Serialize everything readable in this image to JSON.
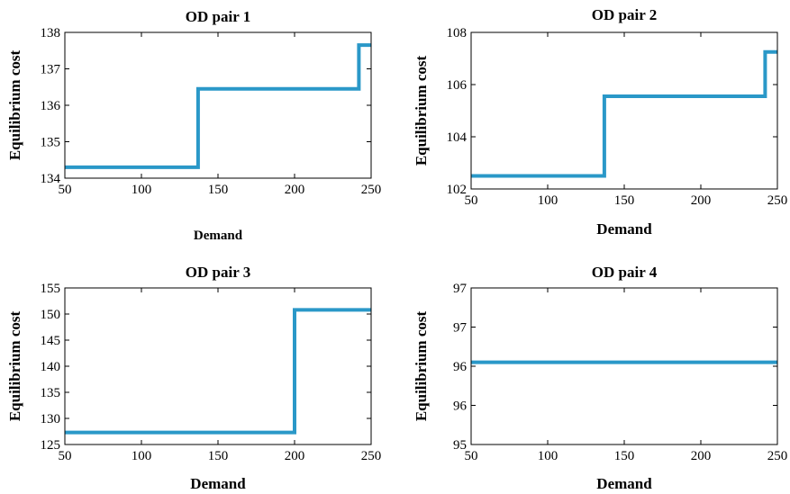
{
  "colors": {
    "line": "#2a98c8",
    "frame": "#000000"
  },
  "chart_data": [
    {
      "type": "line",
      "title": "OD pair 1",
      "xlabel": "Demand",
      "ylabel": "Equilibrium cost",
      "xlim": [
        50,
        250
      ],
      "ylim": [
        134,
        138
      ],
      "xticks": [
        50,
        100,
        150,
        200,
        250
      ],
      "yticks": [
        134,
        135,
        136,
        137,
        138
      ],
      "xtick_labels": [
        "50",
        "100",
        "150",
        "200",
        "250"
      ],
      "ytick_labels": [
        "134",
        "135",
        "136",
        "137",
        "138"
      ],
      "grid": false,
      "series": [
        {
          "x": [
            50,
            137,
            137,
            242,
            242,
            250
          ],
          "y": [
            134.3,
            134.3,
            136.45,
            136.45,
            137.65,
            137.65
          ]
        }
      ]
    },
    {
      "type": "line",
      "title": "OD pair 2",
      "xlabel": "Demand",
      "ylabel": "Equilibrium cost",
      "xlim": [
        50,
        250
      ],
      "ylim": [
        102,
        108
      ],
      "xticks": [
        50,
        100,
        150,
        200,
        250
      ],
      "yticks": [
        102,
        104,
        106,
        108
      ],
      "xtick_labels": [
        "50",
        "100",
        "150",
        "200",
        "250"
      ],
      "ytick_labels": [
        "102",
        "104",
        "106",
        "108"
      ],
      "grid": false,
      "series": [
        {
          "x": [
            50,
            137,
            137,
            242,
            242,
            250
          ],
          "y": [
            102.5,
            102.5,
            105.55,
            105.55,
            107.25,
            107.25
          ]
        }
      ]
    },
    {
      "type": "line",
      "title": "OD pair 3",
      "xlabel": "Demand",
      "ylabel": "Equilibrium cost",
      "xlim": [
        50,
        250
      ],
      "ylim": [
        125,
        155
      ],
      "xticks": [
        50,
        100,
        150,
        200,
        250
      ],
      "yticks": [
        125,
        130,
        135,
        140,
        145,
        150,
        155
      ],
      "xtick_labels": [
        "50",
        "100",
        "150",
        "200",
        "250"
      ],
      "ytick_labels": [
        "125",
        "130",
        "135",
        "140",
        "145",
        "150",
        "155"
      ],
      "grid": false,
      "series": [
        {
          "x": [
            50,
            200,
            200,
            250
          ],
          "y": [
            127.3,
            127.3,
            150.8,
            150.8
          ]
        }
      ]
    },
    {
      "type": "line",
      "title": "OD pair 4",
      "xlabel": "Demand",
      "ylabel": "Equilibrium cost",
      "xlim": [
        50,
        250
      ],
      "ylim": [
        95,
        97
      ],
      "xticks": [
        50,
        100,
        150,
        200,
        250
      ],
      "yticks": [
        95,
        95.5,
        96,
        96.5,
        97
      ],
      "xtick_labels": [
        "50",
        "100",
        "150",
        "200",
        "250"
      ],
      "ytick_labels": [
        "95",
        "96",
        "96",
        "97",
        "97"
      ],
      "grid": false,
      "series": [
        {
          "x": [
            50,
            250
          ],
          "y": [
            96.05,
            96.05
          ]
        }
      ]
    }
  ]
}
